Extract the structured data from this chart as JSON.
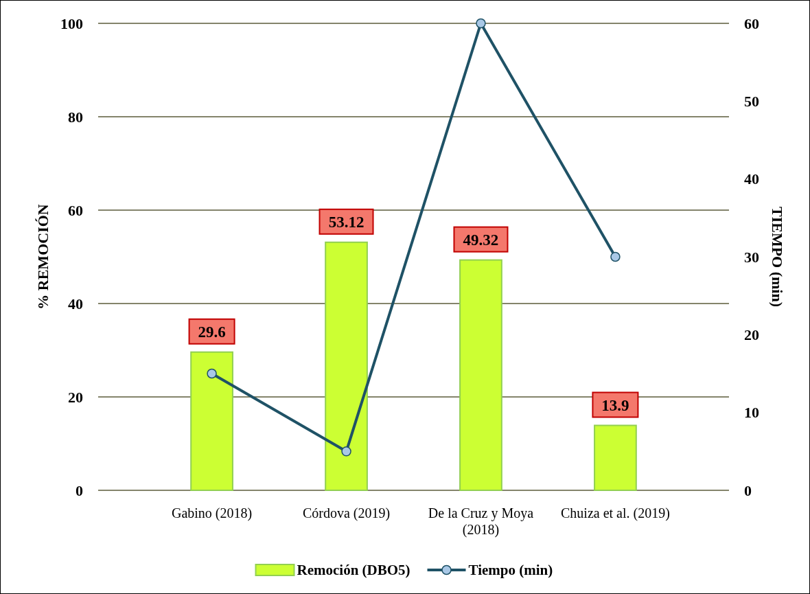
{
  "chart_data": {
    "type": "bar",
    "categories": [
      "Gabino (2018)",
      "Córdova (2019)",
      "De la Cruz y Moya (2018)",
      "Chuiza et al. (2019)"
    ],
    "series": [
      {
        "name": "Remoción (DBO5)",
        "color": "#ccff33",
        "values": [
          29.6,
          53.12,
          49.32,
          13.9
        ],
        "value_labels": [
          "29.6",
          "53.12",
          "49.32",
          "13.9"
        ]
      },
      {
        "name": "Tiempo (min)",
        "type": "line",
        "axis": "y2",
        "color": "#1f5266",
        "marker": "circle",
        "values": [
          15,
          5,
          60,
          30
        ]
      }
    ],
    "ylabel": "% REMOCIÓN",
    "y2label": "TIEMPO (min)",
    "ylim": [
      0,
      100
    ],
    "yticks": [
      0,
      20,
      40,
      60,
      80,
      100
    ],
    "y2lim": [
      0,
      60
    ],
    "y2ticks": [
      0,
      10,
      20,
      30,
      40,
      50,
      60
    ],
    "grid": "y",
    "legend": "bottom"
  }
}
